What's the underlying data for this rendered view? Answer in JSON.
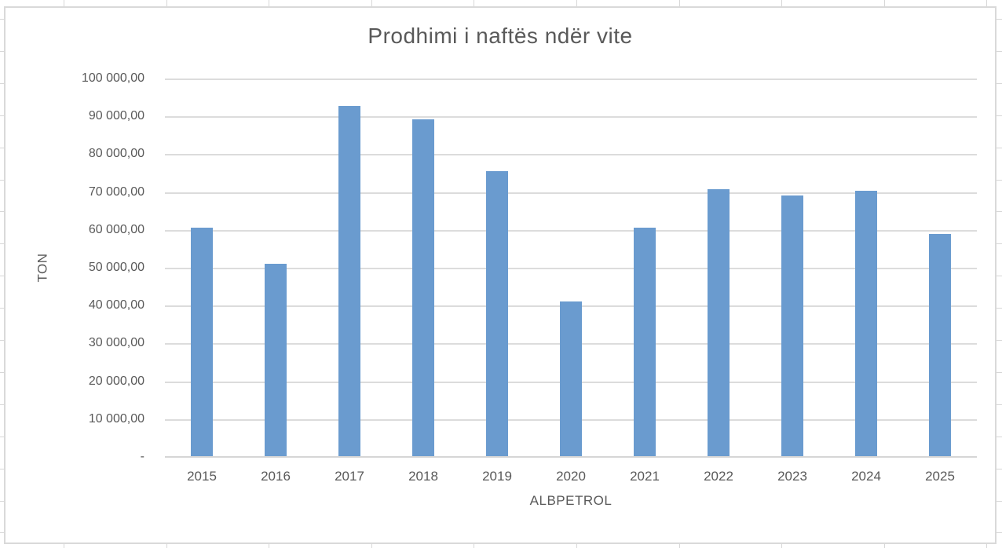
{
  "chart": {
    "title": "Prodhimi i naftës ndër vite",
    "y_axis_title": "TON",
    "x_axis_title": "ALBPETROL"
  },
  "chart_data": {
    "type": "bar",
    "title": "Prodhimi i naftës ndër vite",
    "xlabel": "ALBPETROL",
    "ylabel": "TON",
    "categories": [
      "2015",
      "2016",
      "2017",
      "2018",
      "2019",
      "2020",
      "2021",
      "2022",
      "2023",
      "2024",
      "2025"
    ],
    "values": [
      60500,
      51000,
      92800,
      89200,
      75500,
      41000,
      60500,
      70700,
      69100,
      70300,
      59000
    ],
    "ylim": [
      0,
      100000
    ],
    "y_tick_interval": 10000,
    "y_tick_labels_top_to_bottom": [
      "100 000,00",
      "90 000,00",
      "80 000,00",
      "70 000,00",
      "60 000,00",
      "50 000,00",
      "40 000,00",
      "30 000,00",
      "20 000,00",
      "10 000,00",
      "-"
    ],
    "grid": "horizontal",
    "legend": "none"
  },
  "colors": {
    "bar": "#6a9bcf",
    "text": "#595959",
    "plot_gridline": "#dcdcdc",
    "axis_line": "#d6d6d6",
    "sheet_gridline": "#d7d7d7",
    "chart_border": "#d9d9d9",
    "background": "#ffffff"
  }
}
